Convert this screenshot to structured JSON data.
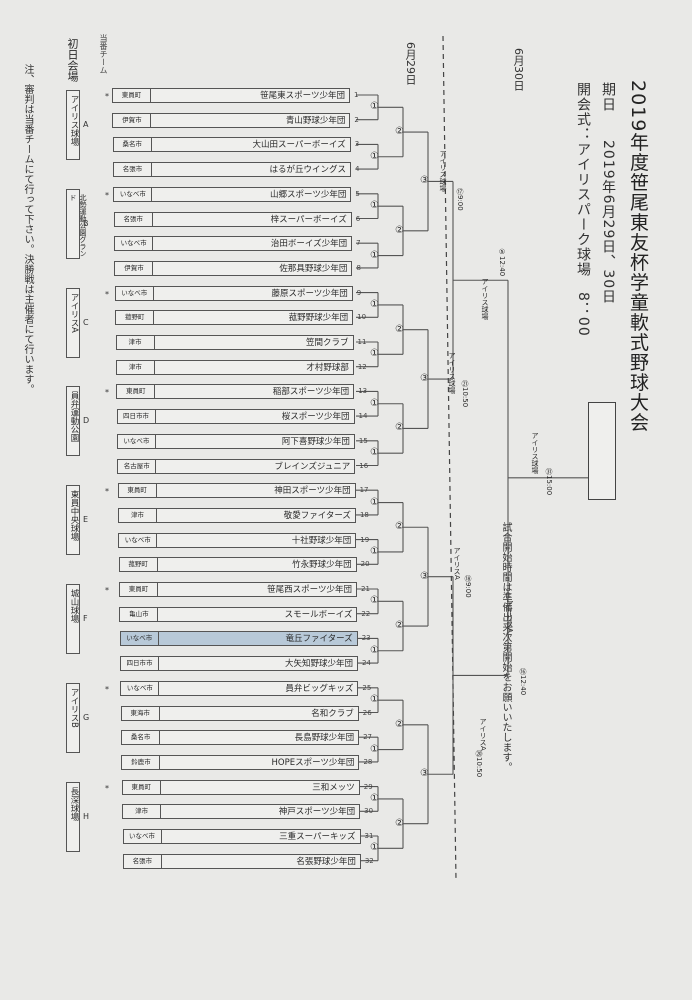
{
  "header": {
    "title": "2019年度笹尾東友杯学童軟式野球大会",
    "period_label": "期日",
    "period_value": "2019年6月29日、30日",
    "opening": "開会式：アイリスパーク球場　8：00"
  },
  "dates": {
    "day2": "6月30日",
    "day1": "6月29日"
  },
  "seed_label": "当番チーム",
  "first_day_venue": "初日会場",
  "notes": {
    "left": "注、審判は当番チームにて行って下さい。決勝戦は主催者にて行います。",
    "right": "試合開始時間は準備出来次第開始をお願いいたします。"
  },
  "teams": [
    {
      "n": "1",
      "name": "笹尾東スポーツ少年団",
      "city": "東員町"
    },
    {
      "n": "2",
      "name": "青山野球少年団",
      "city": "伊賀市"
    },
    {
      "n": "3",
      "name": "大山田スーパーボーイズ",
      "city": "桑名市"
    },
    {
      "n": "4",
      "name": "はるが丘ウイングス",
      "city": "名張市"
    },
    {
      "n": "5",
      "name": "山郷スポーツ少年団",
      "city": "いなべ市"
    },
    {
      "n": "6",
      "name": "梓スーパーボーイズ",
      "city": "名張市"
    },
    {
      "n": "7",
      "name": "治田ボーイズ少年団",
      "city": "いなべ市"
    },
    {
      "n": "8",
      "name": "佐那具野球少年団",
      "city": "伊賀市"
    },
    {
      "n": "9",
      "name": "藤原スポーツ少年団",
      "city": "いなべ市"
    },
    {
      "n": "10",
      "name": "菰野野球少年団",
      "city": "菰野町"
    },
    {
      "n": "11",
      "name": "笠間クラブ",
      "city": "津市"
    },
    {
      "n": "12",
      "name": "才村野球部",
      "city": "津市"
    },
    {
      "n": "13",
      "name": "稲部スポーツ少年団",
      "city": "東員町"
    },
    {
      "n": "14",
      "name": "桜スポーツ少年団",
      "city": "四日市市"
    },
    {
      "n": "15",
      "name": "阿下喜野球少年団",
      "city": "いなべ市"
    },
    {
      "n": "16",
      "name": "ブレインズジュニア",
      "city": "名古屋市"
    },
    {
      "n": "17",
      "name": "神田スポーツ少年団",
      "city": "東員町"
    },
    {
      "n": "18",
      "name": "敬愛ファイターズ",
      "city": "津市"
    },
    {
      "n": "19",
      "name": "十社野球少年団",
      "city": "いなべ市"
    },
    {
      "n": "20",
      "name": "竹永野球少年団",
      "city": "菰野町"
    },
    {
      "n": "21",
      "name": "笹尾西スポーツ少年団",
      "city": "東員町"
    },
    {
      "n": "22",
      "name": "スモールボーイズ",
      "city": "亀山市"
    },
    {
      "n": "23",
      "name": "竜丘ファイターズ",
      "city": "いなべ市",
      "hl": true
    },
    {
      "n": "24",
      "name": "大矢知野球少年団",
      "city": "四日市市"
    },
    {
      "n": "25",
      "name": "員弁ビッグキッズ",
      "city": "いなべ市"
    },
    {
      "n": "26",
      "name": "名和クラブ",
      "city": "東海市"
    },
    {
      "n": "27",
      "name": "長島野球少年団",
      "city": "桑名市"
    },
    {
      "n": "28",
      "name": "HOPEスポーツ少年団",
      "city": "鈴鹿市"
    },
    {
      "n": "29",
      "name": "三和メッツ",
      "city": "東員町"
    },
    {
      "n": "30",
      "name": "神戸スポーツ少年団",
      "city": "津市"
    },
    {
      "n": "31",
      "name": "三重スーパーキッズ",
      "city": "いなべ市"
    },
    {
      "n": "32",
      "name": "名張野球少年団",
      "city": "名張市"
    }
  ],
  "venues": [
    {
      "letter": "A",
      "name": "アイリス球場"
    },
    {
      "letter": "B",
      "name": "北勢運動公園グランド"
    },
    {
      "letter": "C",
      "name": "アイリスA"
    },
    {
      "letter": "D",
      "name": "員弁運動公園"
    },
    {
      "letter": "E",
      "name": "東員中央球場"
    },
    {
      "letter": "F",
      "name": "城山球場"
    },
    {
      "letter": "G",
      "name": "アイリスB"
    },
    {
      "letter": "H",
      "name": "長深球場"
    }
  ],
  "round_labels": [
    "アイリス球場",
    "⑰9:00",
    "⑤12:40",
    "アイリス球場",
    "アイリス球場",
    "㉑10:50",
    "アイリスA",
    "⑱9:00",
    "アイリスA",
    "⑯12:40",
    "アイリスA",
    "⑳10:50",
    "㉛15:00",
    "アイリス球場"
  ],
  "circle_marks": {
    "a": "①",
    "b": "②",
    "c": "③"
  }
}
